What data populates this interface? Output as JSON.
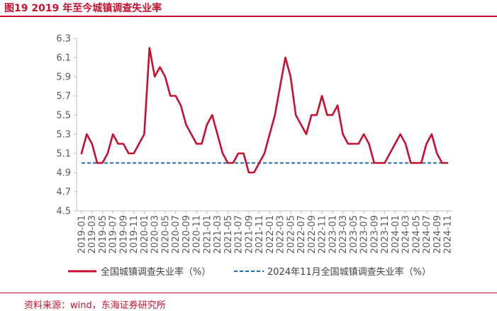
{
  "figure_title": "图19  2019 年至今城镇调查失业率",
  "source_note": "资料来源：wind，东海证券研究所",
  "chart_data": {
    "type": "line",
    "title": "",
    "xlabel": "",
    "ylabel": "",
    "ylim": [
      4.5,
      6.3
    ],
    "yticks": [
      "6.3",
      "6.1",
      "5.9",
      "5.7",
      "5.5",
      "5.3",
      "5.1",
      "4.9",
      "4.7",
      "4.5"
    ],
    "grid": false,
    "legend_position": "bottom",
    "x": [
      "2019-01",
      "2019-02",
      "2019-03",
      "2019-04",
      "2019-05",
      "2019-06",
      "2019-07",
      "2019-08",
      "2019-09",
      "2019-10",
      "2019-11",
      "2019-12",
      "2020-01",
      "2020-02",
      "2020-03",
      "2020-04",
      "2020-05",
      "2020-06",
      "2020-07",
      "2020-08",
      "2020-09",
      "2020-10",
      "2020-11",
      "2020-12",
      "2021-01",
      "2021-02",
      "2021-03",
      "2021-04",
      "2021-05",
      "2021-06",
      "2021-07",
      "2021-08",
      "2021-09",
      "2021-10",
      "2021-11",
      "2021-12",
      "2022-01",
      "2022-02",
      "2022-03",
      "2022-04",
      "2022-05",
      "2022-06",
      "2022-07",
      "2022-08",
      "2022-09",
      "2022-10",
      "2022-11",
      "2022-12",
      "2023-01",
      "2023-02",
      "2023-03",
      "2023-04",
      "2023-05",
      "2023-06",
      "2023-07",
      "2023-08",
      "2023-09",
      "2023-10",
      "2023-11",
      "2023-12",
      "2024-01",
      "2024-02",
      "2024-03",
      "2024-04",
      "2024-05",
      "2024-06",
      "2024-07",
      "2024-08",
      "2024-09",
      "2024-10",
      "2024-11"
    ],
    "xticks": [
      "2019-01",
      "2019-03",
      "2019-05",
      "2019-07",
      "2019-09",
      "2019-11",
      "2020-01",
      "2020-03",
      "2020-05",
      "2020-07",
      "2020-09",
      "2020-11",
      "2021-01",
      "2021-03",
      "2021-05",
      "2021-07",
      "2021-09",
      "2021-11",
      "2022-01",
      "2022-03",
      "2022-05",
      "2022-07",
      "2022-09",
      "2022-11",
      "2023-01",
      "2023-03",
      "2023-05",
      "2023-07",
      "2023-09",
      "2023-11",
      "2024-01",
      "2024-03",
      "2024-05",
      "2024-07",
      "2024-09",
      "2024-11"
    ],
    "series": [
      {
        "name": "全国城镇调查失业率（%）",
        "color": "#c8102e",
        "style": "solid",
        "values": [
          5.1,
          5.3,
          5.2,
          5.0,
          5.0,
          5.1,
          5.3,
          5.2,
          5.2,
          5.1,
          5.1,
          5.2,
          5.3,
          6.2,
          5.9,
          6.0,
          5.9,
          5.7,
          5.7,
          5.6,
          5.4,
          5.3,
          5.2,
          5.2,
          5.4,
          5.5,
          5.3,
          5.1,
          5.0,
          5.0,
          5.1,
          5.1,
          4.9,
          4.9,
          5.0,
          5.1,
          5.3,
          5.5,
          5.8,
          6.1,
          5.9,
          5.5,
          5.4,
          5.3,
          5.5,
          5.5,
          5.7,
          5.5,
          5.5,
          5.6,
          5.3,
          5.2,
          5.2,
          5.2,
          5.3,
          5.2,
          5.0,
          5.0,
          5.0,
          5.1,
          5.2,
          5.3,
          5.2,
          5.0,
          5.0,
          5.0,
          5.2,
          5.3,
          5.1,
          5.0,
          5.0
        ]
      },
      {
        "name": "2024年11月全国城镇调查失业率（%）",
        "color": "#1f6fb2",
        "style": "dashed",
        "value": 5.0
      }
    ]
  }
}
